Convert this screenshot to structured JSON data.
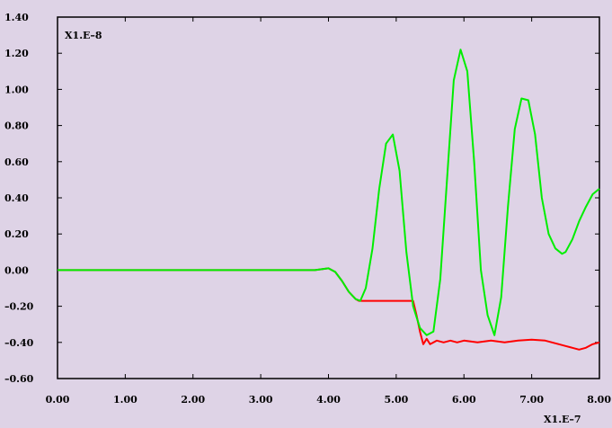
{
  "chart_data": {
    "type": "line",
    "title": "",
    "xlabel": "",
    "ylabel": "",
    "x_multiplier": "X1.E–7",
    "y_multiplier": "X1.E–8",
    "xlim": [
      0,
      8
    ],
    "ylim": [
      -0.6,
      1.4
    ],
    "x_ticks": [
      "0.00",
      "1.00",
      "2.00",
      "3.00",
      "4.00",
      "5.00",
      "6.00",
      "7.00",
      "8.00"
    ],
    "y_ticks": [
      "1.40",
      "1.20",
      "1.00",
      "0.80",
      "0.60",
      "0.40",
      "0.20",
      "0.00",
      "–0.20",
      "–0.40",
      "–0.60"
    ],
    "grid": false,
    "series": [
      {
        "color": "#ff0000",
        "x": [
          0,
          0.5,
          1.0,
          1.5,
          2.0,
          2.5,
          3.0,
          3.5,
          3.8,
          3.9,
          4.0,
          4.1,
          4.2,
          4.3,
          4.4,
          4.45,
          4.5,
          4.7,
          4.9,
          5.1,
          5.25,
          5.3,
          5.35,
          5.4,
          5.45,
          5.5,
          5.6,
          5.7,
          5.8,
          5.9,
          6.0,
          6.2,
          6.4,
          6.6,
          6.8,
          7.0,
          7.2,
          7.4,
          7.5,
          7.6,
          7.7,
          7.8,
          7.9,
          8.0
        ],
        "y": [
          0,
          0,
          0,
          0,
          0,
          0,
          0,
          0,
          0,
          0.005,
          0.01,
          -0.01,
          -0.06,
          -0.12,
          -0.16,
          -0.17,
          -0.17,
          -0.17,
          -0.17,
          -0.17,
          -0.17,
          -0.25,
          -0.34,
          -0.41,
          -0.38,
          -0.41,
          -0.39,
          -0.4,
          -0.39,
          -0.4,
          -0.39,
          -0.4,
          -0.39,
          -0.4,
          -0.39,
          -0.385,
          -0.39,
          -0.41,
          -0.42,
          -0.43,
          -0.44,
          -0.43,
          -0.41,
          -0.4
        ]
      },
      {
        "color": "#00ee00",
        "x": [
          0,
          0.5,
          1.0,
          1.5,
          2.0,
          2.5,
          3.0,
          3.5,
          3.8,
          3.9,
          4.0,
          4.1,
          4.2,
          4.3,
          4.4,
          4.47,
          4.55,
          4.65,
          4.75,
          4.85,
          4.95,
          5.05,
          5.15,
          5.25,
          5.35,
          5.45,
          5.55,
          5.65,
          5.75,
          5.85,
          5.95,
          6.05,
          6.15,
          6.25,
          6.35,
          6.45,
          6.55,
          6.65,
          6.75,
          6.85,
          6.95,
          7.05,
          7.15,
          7.25,
          7.35,
          7.45,
          7.5,
          7.6,
          7.7,
          7.8,
          7.9,
          8.0
        ],
        "y": [
          0,
          0,
          0,
          0,
          0,
          0,
          0,
          0,
          0,
          0.005,
          0.01,
          -0.01,
          -0.06,
          -0.12,
          -0.16,
          -0.17,
          -0.1,
          0.12,
          0.45,
          0.7,
          0.75,
          0.55,
          0.1,
          -0.2,
          -0.32,
          -0.36,
          -0.34,
          -0.05,
          0.5,
          1.05,
          1.22,
          1.1,
          0.6,
          0.0,
          -0.25,
          -0.36,
          -0.15,
          0.35,
          0.78,
          0.95,
          0.94,
          0.75,
          0.4,
          0.2,
          0.12,
          0.09,
          0.1,
          0.17,
          0.27,
          0.35,
          0.42,
          0.45
        ]
      }
    ]
  }
}
